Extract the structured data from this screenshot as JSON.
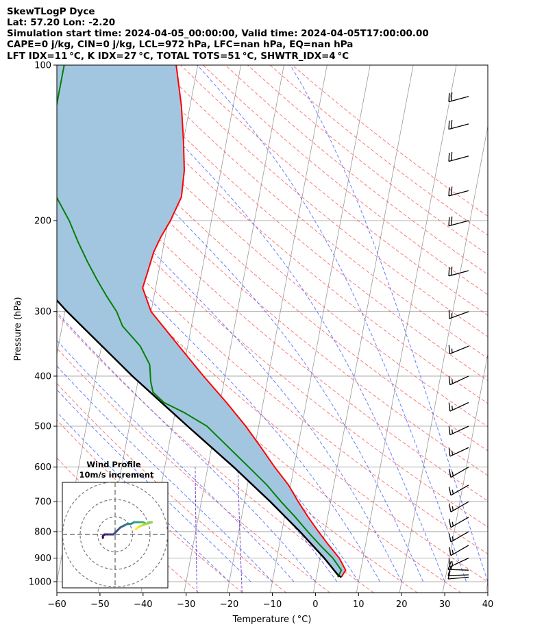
{
  "header": {
    "line1": "SkewTLogP Dyce",
    "line2": "Lat: 57.20   Lon: -2.20",
    "line3": "Simulation start time: 2024-04-05_00:00:00, Valid time: 2024-04-05T17:00:00.00",
    "line4": "CAPE=0 j/kg, CIN=0 j/kg, LCL=972 hPa, LFC=nan hPa, EQ=nan hPa",
    "line5": "LFT IDX=11 °C, K IDX=27 °C, TOTAL TOTS=51 °C, SHWTR_IDX=4 °C"
  },
  "colors": {
    "temperature": "#ff0000",
    "dewpoint": "#008000",
    "parcel": "#000000",
    "cape_fill": "#a3c6e0",
    "dry_adiabat": "#ff5555",
    "moist_adiabat": "#3355ff",
    "mixing_ratio": "#7a48c7",
    "isotherm": "#999999"
  },
  "chart_data": [
    {
      "type": "line",
      "title": "",
      "xlabel": "Temperature ( °C)",
      "ylabel": "Pressure (hPa)",
      "y_scale": "log",
      "xlim": [
        -60,
        40
      ],
      "ylim": [
        1050,
        100
      ],
      "skew": true,
      "grid": true,
      "x_ticks": [
        -60,
        -50,
        -40,
        -30,
        -20,
        -10,
        0,
        10,
        20,
        30,
        40
      ],
      "y_ticks": [
        1000,
        900,
        800,
        700,
        600,
        500,
        400,
        300,
        200,
        100
      ],
      "series": [
        {
          "role": "temperature",
          "points": [
            {
              "p": 980,
              "t": 5.8
            },
            {
              "p": 950,
              "t": 6.5
            },
            {
              "p": 900,
              "t": 4.5
            },
            {
              "p": 850,
              "t": 1.5
            },
            {
              "p": 800,
              "t": -1.5
            },
            {
              "p": 750,
              "t": -4.5
            },
            {
              "p": 700,
              "t": -7.5
            },
            {
              "p": 650,
              "t": -10.5
            },
            {
              "p": 600,
              "t": -14.5
            },
            {
              "p": 550,
              "t": -18.5
            },
            {
              "p": 500,
              "t": -23
            },
            {
              "p": 450,
              "t": -28.5
            },
            {
              "p": 400,
              "t": -35
            },
            {
              "p": 350,
              "t": -42
            },
            {
              "p": 300,
              "t": -50
            },
            {
              "p": 270,
              "t": -53
            },
            {
              "p": 250,
              "t": -52.5
            },
            {
              "p": 230,
              "t": -52
            },
            {
              "p": 215,
              "t": -51
            },
            {
              "p": 200,
              "t": -49.5
            },
            {
              "p": 180,
              "t": -48
            },
            {
              "p": 160,
              "t": -48.5
            },
            {
              "p": 140,
              "t": -50
            },
            {
              "p": 120,
              "t": -52
            },
            {
              "p": 100,
              "t": -55
            }
          ]
        },
        {
          "role": "dewpoint",
          "points": [
            {
              "p": 980,
              "t": 5.0
            },
            {
              "p": 950,
              "t": 5.5
            },
            {
              "p": 900,
              "t": 3.0
            },
            {
              "p": 850,
              "t": -0.5
            },
            {
              "p": 800,
              "t": -4
            },
            {
              "p": 750,
              "t": -7.5
            },
            {
              "p": 700,
              "t": -11.5
            },
            {
              "p": 650,
              "t": -15.5
            },
            {
              "p": 600,
              "t": -20.5
            },
            {
              "p": 550,
              "t": -26
            },
            {
              "p": 500,
              "t": -32
            },
            {
              "p": 470,
              "t": -38
            },
            {
              "p": 450,
              "t": -43
            },
            {
              "p": 430,
              "t": -46
            },
            {
              "p": 410,
              "t": -47
            },
            {
              "p": 380,
              "t": -48
            },
            {
              "p": 350,
              "t": -51
            },
            {
              "p": 320,
              "t": -56
            },
            {
              "p": 300,
              "t": -58
            },
            {
              "p": 280,
              "t": -61
            },
            {
              "p": 260,
              "t": -64
            },
            {
              "p": 240,
              "t": -67
            },
            {
              "p": 220,
              "t": -70
            },
            {
              "p": 200,
              "t": -73
            },
            {
              "p": 180,
              "t": -77
            },
            {
              "p": 165,
              "t": -81
            },
            {
              "p": 150,
              "t": -81
            },
            {
              "p": 130,
              "t": -81
            },
            {
              "p": 115,
              "t": -81
            },
            {
              "p": 100,
              "t": -81
            }
          ]
        },
        {
          "role": "parcel",
          "points": [
            {
              "p": 980,
              "t": 5.8
            },
            {
              "p": 972,
              "t": 5.0
            },
            {
              "p": 900,
              "t": 1.0
            },
            {
              "p": 800,
              "t": -5.8
            },
            {
              "p": 700,
              "t": -14.0
            },
            {
              "p": 600,
              "t": -24.0
            },
            {
              "p": 500,
              "t": -36.5
            },
            {
              "p": 400,
              "t": -51.5
            },
            {
              "p": 300,
              "t": -69.5
            },
            {
              "p": 250,
              "t": -80
            },
            {
              "p": 200,
              "t": -91.5
            },
            {
              "p": 150,
              "t": -104.5
            },
            {
              "p": 100,
              "t": -120
            }
          ]
        }
      ],
      "wind_barbs": [
        {
          "p": 980,
          "dir": 265,
          "speed_kt": 10
        },
        {
          "p": 970,
          "dir": 268,
          "speed_kt": 10
        },
        {
          "p": 950,
          "dir": 272,
          "speed_kt": 15
        },
        {
          "p": 900,
          "dir": 245,
          "speed_kt": 15
        },
        {
          "p": 850,
          "dir": 240,
          "speed_kt": 15
        },
        {
          "p": 800,
          "dir": 240,
          "speed_kt": 15
        },
        {
          "p": 750,
          "dir": 240,
          "speed_kt": 15
        },
        {
          "p": 700,
          "dir": 240,
          "speed_kt": 15
        },
        {
          "p": 650,
          "dir": 240,
          "speed_kt": 15
        },
        {
          "p": 600,
          "dir": 240,
          "speed_kt": 15
        },
        {
          "p": 550,
          "dir": 245,
          "speed_kt": 15
        },
        {
          "p": 500,
          "dir": 245,
          "speed_kt": 15
        },
        {
          "p": 450,
          "dir": 245,
          "speed_kt": 15
        },
        {
          "p": 400,
          "dir": 245,
          "speed_kt": 15
        },
        {
          "p": 350,
          "dir": 248,
          "speed_kt": 15
        },
        {
          "p": 300,
          "dir": 250,
          "speed_kt": 15
        },
        {
          "p": 250,
          "dir": 255,
          "speed_kt": 20
        },
        {
          "p": 200,
          "dir": 255,
          "speed_kt": 20
        },
        {
          "p": 175,
          "dir": 255,
          "speed_kt": 20
        },
        {
          "p": 150,
          "dir": 255,
          "speed_kt": 20
        },
        {
          "p": 130,
          "dir": 255,
          "speed_kt": 20
        },
        {
          "p": 115,
          "dir": 255,
          "speed_kt": 20
        }
      ]
    },
    {
      "type": "line",
      "title": "Wind Profile",
      "subtitle": "10m/s increment",
      "rings_ms": [
        10,
        20,
        30
      ],
      "hodograph_uv": [
        [
          -7,
          -2
        ],
        [
          -7,
          -1
        ],
        [
          -6,
          0
        ],
        [
          -4,
          0
        ],
        [
          -1,
          0
        ],
        [
          1,
          2
        ],
        [
          3,
          4
        ],
        [
          5,
          5
        ],
        [
          7,
          6
        ],
        [
          9,
          6
        ],
        [
          11,
          7
        ],
        [
          14,
          7
        ],
        [
          16,
          7
        ],
        [
          18,
          6
        ],
        [
          20,
          7
        ],
        [
          21,
          7
        ],
        [
          18,
          6
        ],
        [
          15,
          5
        ],
        [
          13,
          4
        ],
        [
          12,
          3
        ]
      ]
    }
  ]
}
